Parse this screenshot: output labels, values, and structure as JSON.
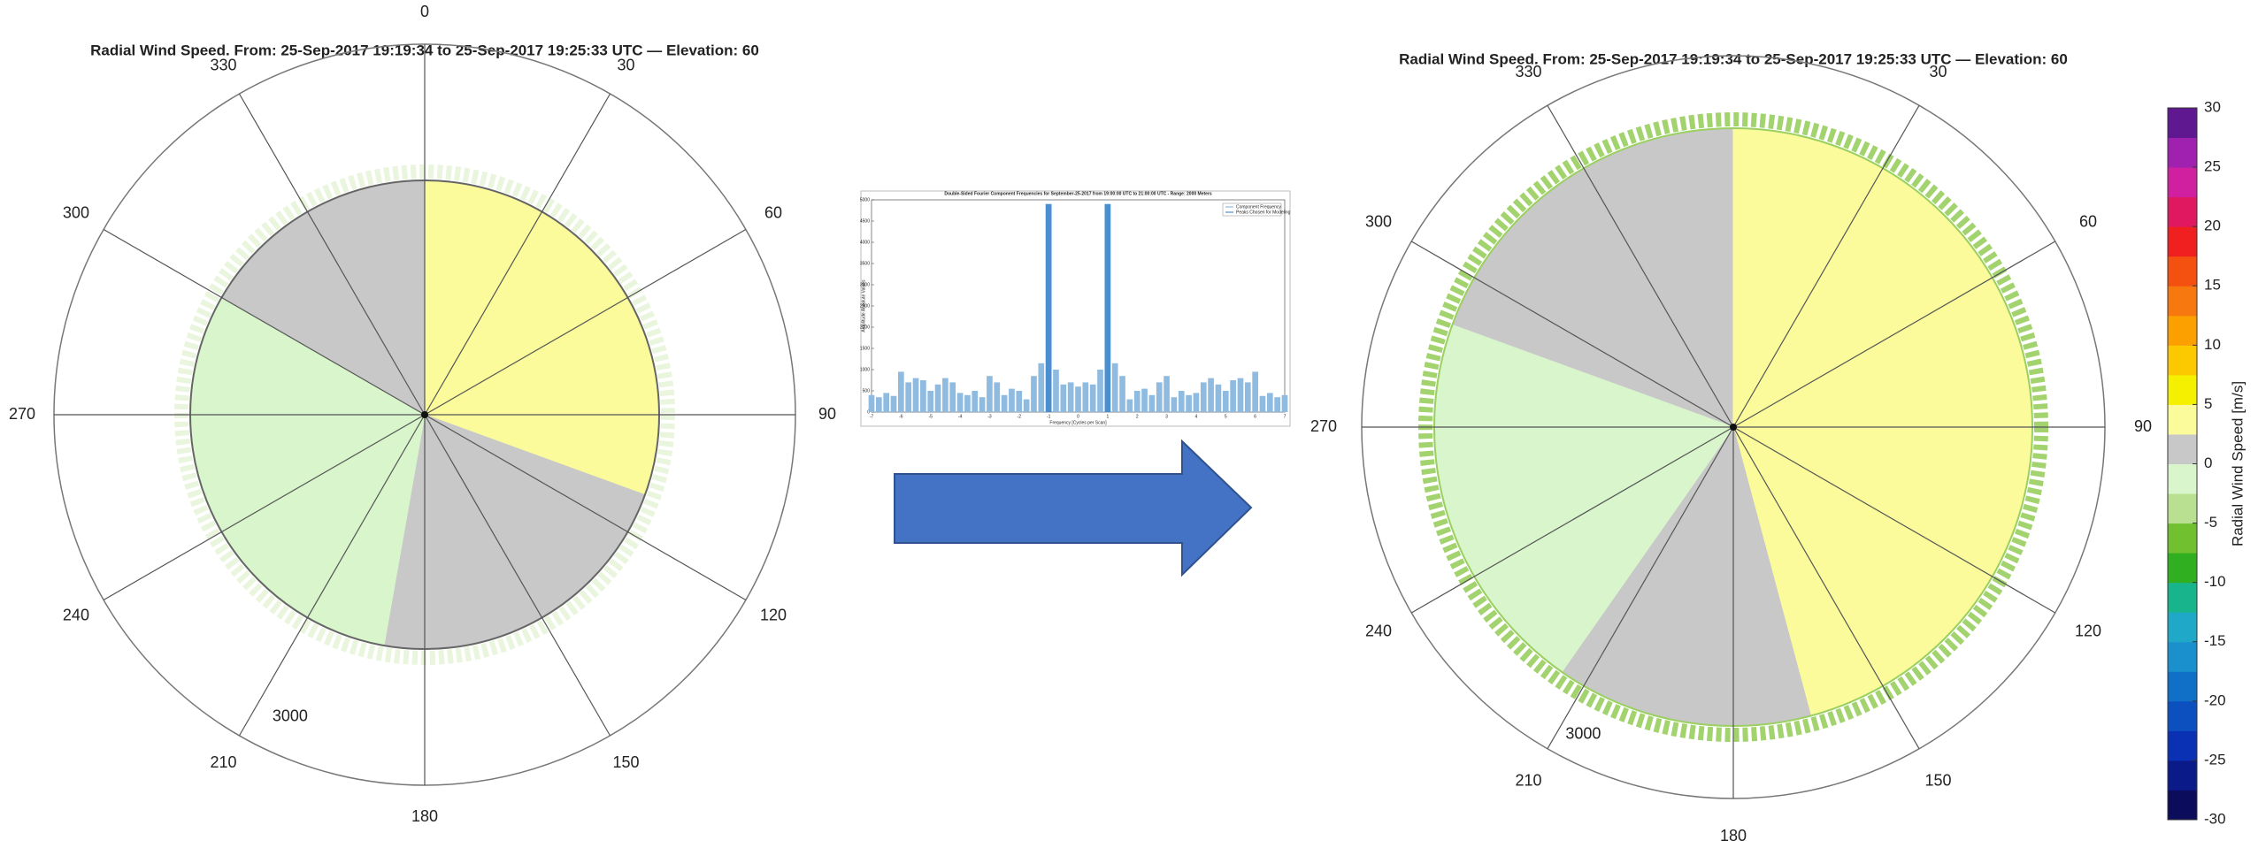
{
  "chart_data": [
    {
      "type": "polar",
      "title": "Radial Wind Speed. From: 25-Sep-2017 19:19:34 to 25-Sep-2017 19:25:33 UTC — Elevation: 60",
      "theta_ticks": [
        0,
        30,
        60,
        90,
        120,
        150,
        180,
        210,
        240,
        270,
        300,
        330
      ],
      "rticks": [
        3000
      ],
      "sectors": [
        {
          "from": 300,
          "to": 360,
          "value": 0
        },
        {
          "from": 0,
          "to": 110,
          "value": 2.5
        },
        {
          "from": 110,
          "to": 190,
          "value": 0
        },
        {
          "from": 190,
          "to": 300,
          "value": -2.5
        }
      ]
    },
    {
      "type": "bar",
      "title": "Double-Sided Fourier Component Frequencies for September-25-2017 from 19:00:00 UTC to 21:00:00 UTC - Range: 2000 Meters",
      "x_label": "Frequency [Cycles per Scan]",
      "y_label": "Amplitude Absolute Values",
      "xlim": [
        -7,
        7
      ],
      "xticks": [
        -7,
        -6,
        -5,
        -4,
        -3,
        -2,
        -1,
        0,
        1,
        2,
        3,
        4,
        5,
        6,
        7
      ],
      "ylim": [
        0,
        5000
      ],
      "yticks": [
        0,
        500,
        1000,
        1500,
        2000,
        2500,
        3000,
        3500,
        4000,
        4500,
        5000
      ],
      "legend": "upper right",
      "series": [
        {
          "name": "Component Frequency",
          "color": "#8fbbe0",
          "x": [
            -7,
            -6.75,
            -6.5,
            -6.25,
            -6,
            -5.75,
            -5.5,
            -5.25,
            -5,
            -4.75,
            -4.5,
            -4.25,
            -4,
            -3.75,
            -3.5,
            -3.25,
            -3,
            -2.75,
            -2.5,
            -2.25,
            -2,
            -1.75,
            -1.5,
            -1.25,
            -1,
            -0.75,
            -0.5,
            -0.25,
            0,
            0.25,
            0.5,
            0.75,
            1,
            1.25,
            1.5,
            1.75,
            2,
            2.25,
            2.5,
            2.75,
            3,
            3.25,
            3.5,
            3.75,
            4,
            4.25,
            4.5,
            4.75,
            5,
            5.25,
            5.5,
            5.75,
            6,
            6.25,
            6.5,
            6.75,
            7
          ],
          "values": [
            400,
            350,
            450,
            380,
            950,
            700,
            800,
            750,
            500,
            650,
            800,
            700,
            450,
            400,
            500,
            350,
            850,
            700,
            400,
            550,
            500,
            300,
            850,
            1150,
            4900,
            1000,
            650,
            700,
            600,
            700,
            650,
            1000,
            4900,
            1150,
            850,
            300,
            500,
            550,
            400,
            700,
            850,
            350,
            500,
            400,
            450,
            700,
            800,
            650,
            500,
            750,
            800,
            700,
            950,
            380,
            450,
            350,
            400
          ]
        },
        {
          "name": "Peaks Chosen for Modeling",
          "color": "#4a8fd0",
          "x": [
            -1,
            1
          ],
          "values": [
            4900,
            4900
          ]
        }
      ]
    },
    {
      "type": "polar",
      "title": "Radial Wind Speed. From: 25-Sep-2017 19:19:34 to 25-Sep-2017 19:25:33 UTC — Elevation: 60",
      "theta_ticks": [
        30,
        60,
        90,
        120,
        150,
        180,
        210,
        240,
        270,
        300,
        330
      ],
      "rticks": [
        3000
      ],
      "sectors": [
        {
          "from": 290,
          "to": 360,
          "value": 0
        },
        {
          "from": 0,
          "to": 165,
          "value": 2.5
        },
        {
          "from": 165,
          "to": 215,
          "value": 0
        },
        {
          "from": 215,
          "to": 290,
          "value": -2.5
        }
      ],
      "colorbar": {
        "label": "Radial Wind Speed [m/s]",
        "clim": [
          -30,
          30
        ],
        "ticks": [
          -30,
          -25,
          -20,
          -15,
          -10,
          -5,
          0,
          5,
          10,
          15,
          20,
          25,
          30
        ],
        "colors": [
          "#0c0c5c",
          "#0a1a88",
          "#0a30b4",
          "#0c50c0",
          "#1070c8",
          "#1a90cc",
          "#20a8c8",
          "#18b48c",
          "#30b020",
          "#70c030",
          "#b8e090",
          "#d8f5cc",
          "#c8c8c8",
          "#fbfb9c",
          "#f5f000",
          "#fcc800",
          "#fca000",
          "#f87810",
          "#f45010",
          "#f02020",
          "#e01860",
          "#d020a0",
          "#a020b0",
          "#601890"
        ]
      }
    }
  ]
}
